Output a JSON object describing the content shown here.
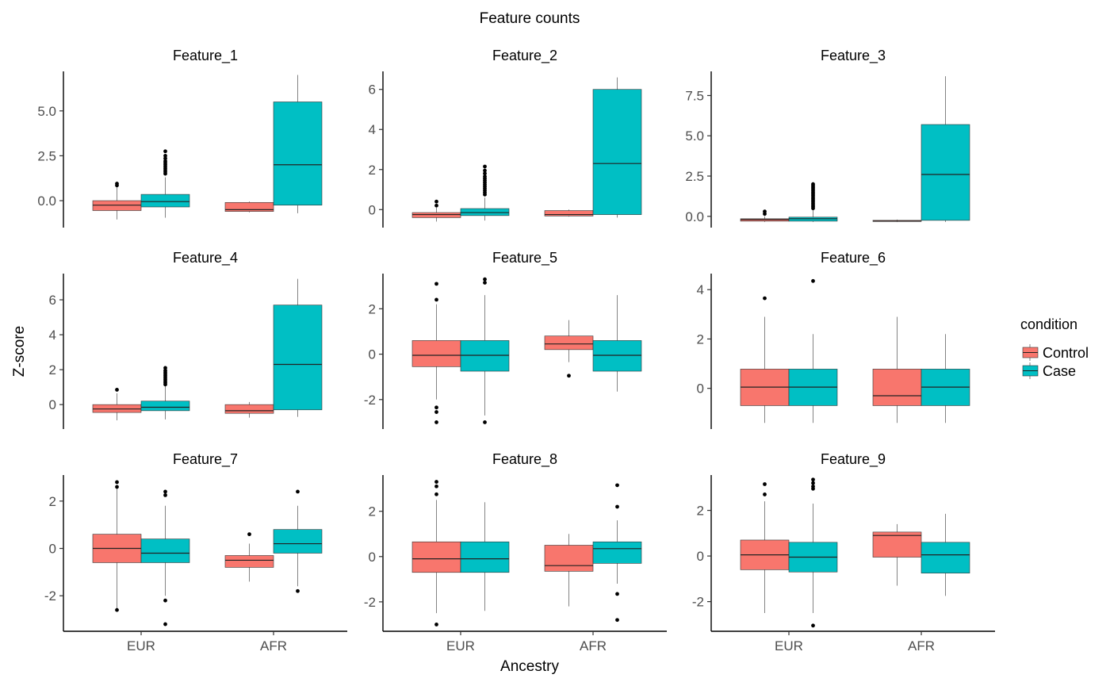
{
  "chart_data": {
    "type": "boxplot",
    "title": "Feature counts",
    "xlabel": "Ancestry",
    "ylabel": "Z-score",
    "legend": {
      "title": "condition",
      "position": "right",
      "entries": [
        {
          "name": "Control",
          "color": "#F8766D"
        },
        {
          "name": "Case",
          "color": "#00BFC4"
        }
      ]
    },
    "categories": [
      "EUR",
      "AFR"
    ],
    "panels": [
      {
        "name": "Feature_1",
        "ylim": [
          -1.5,
          7.2
        ],
        "ticks": [
          0.0,
          2.5,
          5.0
        ],
        "tick_labels": [
          "0.0",
          "2.5",
          "5.0"
        ],
        "boxes": [
          {
            "category": "EUR",
            "condition": "Control",
            "min": -1.05,
            "q1": -0.55,
            "median": -0.25,
            "q3": 0.0,
            "max": 0.8,
            "outliers": [
              0.85,
              0.95
            ]
          },
          {
            "category": "EUR",
            "condition": "Case",
            "min": -0.95,
            "q1": -0.35,
            "median": -0.05,
            "q3": 0.35,
            "max": 1.3,
            "outliers": [
              1.5,
              1.6,
              1.7,
              1.8,
              1.9,
              2.0,
              2.1,
              2.2,
              2.35,
              2.5,
              2.75
            ]
          },
          {
            "category": "AFR",
            "condition": "Control",
            "min": -0.65,
            "q1": -0.6,
            "median": -0.5,
            "q3": -0.1,
            "max": -0.05,
            "outliers": []
          },
          {
            "category": "AFR",
            "condition": "Case",
            "min": -0.7,
            "q1": -0.25,
            "median": 2.0,
            "q3": 5.5,
            "max": 7.0,
            "outliers": []
          }
        ]
      },
      {
        "name": "Feature_2",
        "ylim": [
          -0.9,
          6.9
        ],
        "ticks": [
          0,
          2,
          4,
          6
        ],
        "tick_labels": [
          "0",
          "2",
          "4",
          "6"
        ],
        "boxes": [
          {
            "category": "EUR",
            "condition": "Control",
            "min": -0.6,
            "q1": -0.4,
            "median": -0.25,
            "q3": -0.15,
            "max": 0.1,
            "outliers": [
              0.2,
              0.4
            ]
          },
          {
            "category": "EUR",
            "condition": "Case",
            "min": -0.55,
            "q1": -0.3,
            "median": -0.15,
            "q3": 0.05,
            "max": 0.6,
            "outliers": [
              0.75,
              0.85,
              0.95,
              1.05,
              1.15,
              1.25,
              1.35,
              1.45,
              1.55,
              1.65,
              1.8,
              1.95,
              2.15
            ]
          },
          {
            "category": "AFR",
            "condition": "Control",
            "min": -0.35,
            "q1": -0.32,
            "median": -0.25,
            "q3": -0.05,
            "max": 0.0,
            "outliers": []
          },
          {
            "category": "AFR",
            "condition": "Case",
            "min": -0.4,
            "q1": -0.25,
            "median": 2.3,
            "q3": 6.0,
            "max": 6.6,
            "outliers": []
          }
        ]
      },
      {
        "name": "Feature_3",
        "ylim": [
          -0.7,
          9.0
        ],
        "ticks": [
          0.0,
          2.5,
          5.0,
          7.5
        ],
        "tick_labels": [
          "0.0",
          "2.5",
          "5.0",
          "7.5"
        ],
        "boxes": [
          {
            "category": "EUR",
            "condition": "Control",
            "min": -0.35,
            "q1": -0.3,
            "median": -0.2,
            "q3": -0.15,
            "max": 0.0,
            "outliers": [
              0.15,
              0.3
            ]
          },
          {
            "category": "EUR",
            "condition": "Case",
            "min": -0.35,
            "q1": -0.3,
            "median": -0.15,
            "q3": -0.05,
            "max": 0.4,
            "outliers": [
              0.5,
              0.6,
              0.7,
              0.8,
              0.9,
              1.0,
              1.1,
              1.2,
              1.3,
              1.4,
              1.5,
              1.6,
              1.7,
              1.8,
              1.9,
              2.0
            ]
          },
          {
            "category": "AFR",
            "condition": "Control",
            "min": -0.35,
            "q1": -0.32,
            "median": -0.3,
            "q3": -0.25,
            "max": -0.2,
            "outliers": []
          },
          {
            "category": "AFR",
            "condition": "Case",
            "min": -0.35,
            "q1": -0.25,
            "median": 2.6,
            "q3": 5.7,
            "max": 8.7,
            "outliers": []
          }
        ]
      },
      {
        "name": "Feature_4",
        "ylim": [
          -1.4,
          7.5
        ],
        "ticks": [
          0,
          2,
          4,
          6
        ],
        "tick_labels": [
          "0",
          "2",
          "4",
          "6"
        ],
        "boxes": [
          {
            "category": "EUR",
            "condition": "Control",
            "min": -0.9,
            "q1": -0.45,
            "median": -0.25,
            "q3": 0.0,
            "max": 0.65,
            "outliers": [
              0.85
            ]
          },
          {
            "category": "EUR",
            "condition": "Case",
            "min": -0.85,
            "q1": -0.35,
            "median": -0.15,
            "q3": 0.2,
            "max": 1.05,
            "outliers": [
              1.15,
              1.25,
              1.35,
              1.45,
              1.55,
              1.65,
              1.75,
              1.85,
              1.95,
              2.1
            ]
          },
          {
            "category": "AFR",
            "condition": "Control",
            "min": -0.75,
            "q1": -0.5,
            "median": -0.35,
            "q3": 0.0,
            "max": 0.15,
            "outliers": []
          },
          {
            "category": "AFR",
            "condition": "Case",
            "min": -0.7,
            "q1": -0.3,
            "median": 2.3,
            "q3": 5.7,
            "max": 7.2,
            "outliers": []
          }
        ]
      },
      {
        "name": "Feature_5",
        "ylim": [
          -3.3,
          3.55
        ],
        "ticks": [
          -2,
          0,
          2
        ],
        "tick_labels": [
          "-2",
          "0",
          "2"
        ],
        "boxes": [
          {
            "category": "EUR",
            "condition": "Control",
            "min": -2.0,
            "q1": -0.55,
            "median": -0.05,
            "q3": 0.6,
            "max": 2.2,
            "outliers": [
              -3.0,
              -2.55,
              -2.35,
              2.4,
              3.1
            ]
          },
          {
            "category": "EUR",
            "condition": "Case",
            "min": -2.7,
            "q1": -0.75,
            "median": -0.05,
            "q3": 0.6,
            "max": 2.6,
            "outliers": [
              -3.0,
              3.15,
              3.3
            ]
          },
          {
            "category": "AFR",
            "condition": "Control",
            "min": -0.35,
            "q1": 0.2,
            "median": 0.45,
            "q3": 0.8,
            "max": 1.5,
            "outliers": [
              -0.95
            ]
          },
          {
            "category": "AFR",
            "condition": "Case",
            "min": -1.65,
            "q1": -0.75,
            "median": -0.05,
            "q3": 0.6,
            "max": 2.6,
            "outliers": []
          }
        ]
      },
      {
        "name": "Feature_6",
        "ylim": [
          -1.65,
          4.65
        ],
        "ticks": [
          0,
          2,
          4
        ],
        "tick_labels": [
          "0",
          "2",
          "4"
        ],
        "boxes": [
          {
            "category": "EUR",
            "condition": "Control",
            "min": -1.4,
            "q1": -0.7,
            "median": 0.05,
            "q3": 0.78,
            "max": 2.9,
            "outliers": [
              3.65
            ]
          },
          {
            "category": "EUR",
            "condition": "Case",
            "min": -1.4,
            "q1": -0.7,
            "median": 0.05,
            "q3": 0.78,
            "max": 2.2,
            "outliers": [
              4.35
            ]
          },
          {
            "category": "AFR",
            "condition": "Control",
            "min": -1.4,
            "q1": -0.7,
            "median": -0.3,
            "q3": 0.78,
            "max": 2.9,
            "outliers": []
          },
          {
            "category": "AFR",
            "condition": "Case",
            "min": -1.4,
            "q1": -0.7,
            "median": 0.05,
            "q3": 0.78,
            "max": 2.2,
            "outliers": []
          }
        ]
      },
      {
        "name": "Feature_7",
        "ylim": [
          -3.5,
          3.1
        ],
        "ticks": [
          -2,
          0,
          2
        ],
        "tick_labels": [
          "-2",
          "0",
          "2"
        ],
        "boxes": [
          {
            "category": "EUR",
            "condition": "Control",
            "min": -2.55,
            "q1": -0.6,
            "median": 0.0,
            "q3": 0.6,
            "max": 2.55,
            "outliers": [
              -2.6,
              2.6,
              2.8
            ]
          },
          {
            "category": "EUR",
            "condition": "Case",
            "min": -2.0,
            "q1": -0.6,
            "median": -0.2,
            "q3": 0.4,
            "max": 1.8,
            "outliers": [
              -3.2,
              -2.2,
              2.25,
              2.4
            ]
          },
          {
            "category": "AFR",
            "condition": "Control",
            "min": -1.4,
            "q1": -0.8,
            "median": -0.5,
            "q3": -0.3,
            "max": 0.2,
            "outliers": [
              0.6
            ]
          },
          {
            "category": "AFR",
            "condition": "Case",
            "min": -1.6,
            "q1": -0.2,
            "median": 0.2,
            "q3": 0.8,
            "max": 1.8,
            "outliers": [
              -1.8,
              2.4
            ]
          }
        ]
      },
      {
        "name": "Feature_8",
        "ylim": [
          -3.3,
          3.6
        ],
        "ticks": [
          -2,
          0,
          2
        ],
        "tick_labels": [
          "-2",
          "0",
          "2"
        ],
        "boxes": [
          {
            "category": "EUR",
            "condition": "Control",
            "min": -2.5,
            "q1": -0.7,
            "median": -0.1,
            "q3": 0.65,
            "max": 2.5,
            "outliers": [
              -3.0,
              2.75,
              3.1,
              3.3
            ]
          },
          {
            "category": "EUR",
            "condition": "Case",
            "min": -2.4,
            "q1": -0.7,
            "median": -0.1,
            "q3": 0.65,
            "max": 2.4,
            "outliers": []
          },
          {
            "category": "AFR",
            "condition": "Control",
            "min": -2.2,
            "q1": -0.65,
            "median": -0.4,
            "q3": 0.5,
            "max": 1.0,
            "outliers": []
          },
          {
            "category": "AFR",
            "condition": "Case",
            "min": -1.2,
            "q1": -0.3,
            "median": 0.35,
            "q3": 0.65,
            "max": 1.6,
            "outliers": [
              -2.8,
              -1.65,
              2.2,
              3.15
            ]
          }
        ]
      },
      {
        "name": "Feature_9",
        "ylim": [
          -3.3,
          3.55
        ],
        "ticks": [
          -2,
          0,
          2
        ],
        "tick_labels": [
          "-2",
          "0",
          "2"
        ],
        "boxes": [
          {
            "category": "EUR",
            "condition": "Control",
            "min": -2.5,
            "q1": -0.6,
            "median": 0.05,
            "q3": 0.7,
            "max": 2.4,
            "outliers": [
              2.7,
              3.15
            ]
          },
          {
            "category": "EUR",
            "condition": "Case",
            "min": -2.5,
            "q1": -0.7,
            "median": -0.05,
            "q3": 0.6,
            "max": 2.3,
            "outliers": [
              -3.05,
              2.95,
              3.05,
              3.2,
              3.35
            ]
          },
          {
            "category": "AFR",
            "condition": "Control",
            "min": -1.3,
            "q1": -0.05,
            "median": 0.9,
            "q3": 1.05,
            "max": 1.4,
            "outliers": []
          },
          {
            "category": "AFR",
            "condition": "Case",
            "min": -1.75,
            "q1": -0.75,
            "median": 0.05,
            "q3": 0.6,
            "max": 1.85,
            "outliers": []
          }
        ]
      }
    ]
  }
}
